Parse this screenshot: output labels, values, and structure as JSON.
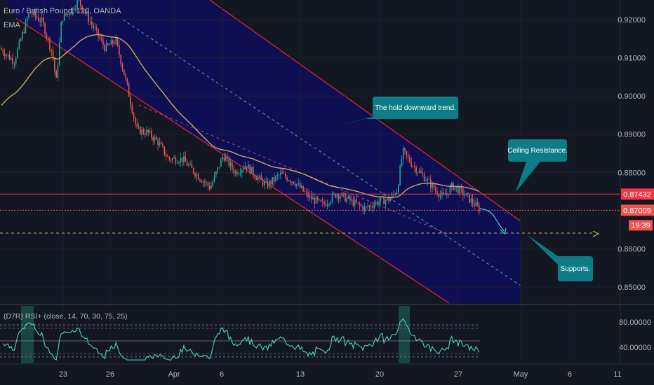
{
  "header": {
    "symbol": "Euro / British Pound, 120, OANDA",
    "indicator": "EMA",
    "rsi_label": "(D7R) RSI+ (close, 14, 70, 30, 75, 25)"
  },
  "colors": {
    "background": "#131722",
    "channel_fill": "#0d0d5e",
    "channel_line": "#e5233c",
    "up_candle": "#26a69a",
    "down_candle": "#ef5350",
    "ema": "#c9a56a",
    "callout": "#0e7c86",
    "resistance": "#f23645",
    "support": "#c7b252",
    "midline_cyan": "#45a4c8",
    "midline_pink": "#c2407a"
  },
  "chart_data": {
    "type": "candlestick",
    "price_axis_ticks": [
      "0.92000",
      "0.91000",
      "0.90000",
      "0.89000",
      "0.88000",
      "0.86000",
      "0.85000"
    ],
    "ylim": [
      0.8455,
      0.9245
    ],
    "x_ticks": [
      "23",
      "26",
      "Apr",
      "6",
      "13",
      "20",
      "27",
      "May",
      "6",
      "11"
    ],
    "resistance_label": "0.87432",
    "resistance_price": 0.87432,
    "current_price_label": "0.87009",
    "current_price": 0.87009,
    "countdown_label": "19:39",
    "support_price": 0.8641,
    "callouts": [
      {
        "text": "The hold downward trend."
      },
      {
        "text": "Ceiling Resistance."
      },
      {
        "text": "Supports."
      }
    ],
    "rsi": {
      "ticks": [
        "80.00000",
        "40.00000"
      ],
      "ylim": [
        18,
        102
      ],
      "levels": [
        75,
        70,
        50,
        30,
        25
      ]
    }
  }
}
